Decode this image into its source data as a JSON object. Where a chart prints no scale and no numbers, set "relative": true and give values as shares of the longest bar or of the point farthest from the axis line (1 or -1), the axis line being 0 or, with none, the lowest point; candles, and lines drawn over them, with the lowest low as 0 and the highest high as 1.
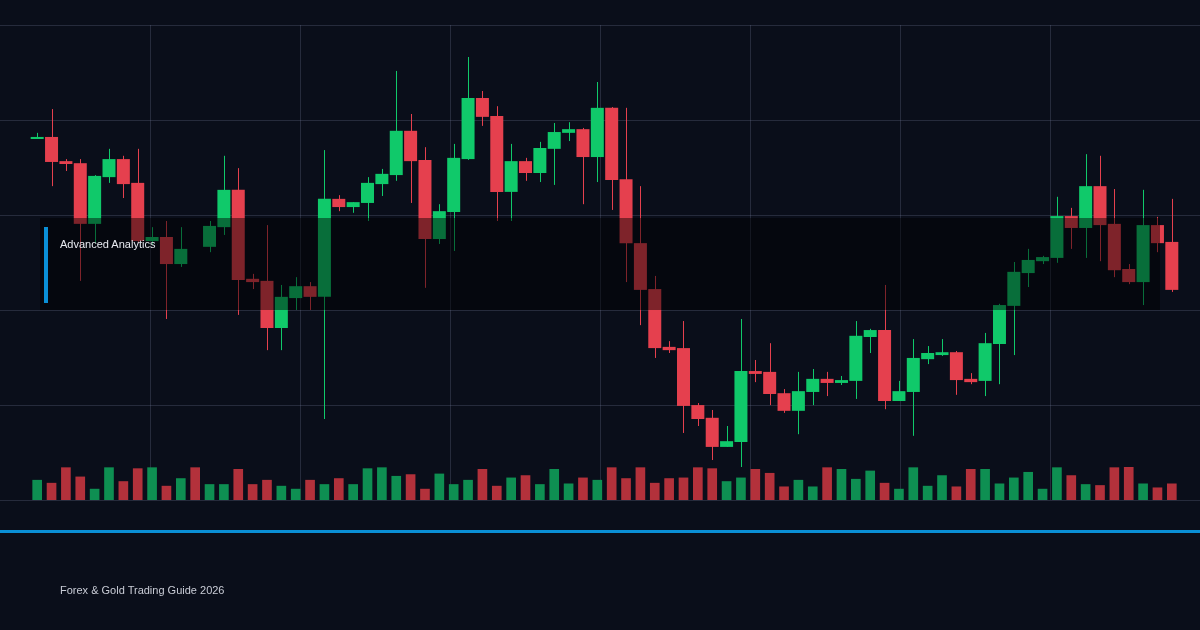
{
  "chart_data": [
    {
      "type": "candlestick",
      "relative": true,
      "grid": true,
      "annotations": [
        "Advanced Analytics",
        "Forex & Gold Trading Guide 2026"
      ],
      "categories": [
        null,
        null,
        null,
        null,
        null,
        null,
        null,
        null,
        null,
        null,
        null,
        null,
        null,
        null,
        null,
        null,
        null,
        null,
        null,
        null,
        null,
        null,
        null,
        null,
        null,
        null,
        null,
        null,
        null,
        null,
        null,
        null,
        null,
        null,
        null,
        null,
        null,
        null,
        null,
        null,
        null,
        null,
        null,
        null,
        null,
        null,
        null,
        null,
        null,
        null,
        null,
        null,
        null,
        null,
        null,
        null,
        null,
        null,
        null,
        null,
        null,
        null,
        null,
        null,
        null,
        null,
        null,
        null,
        null,
        null,
        null,
        null,
        null,
        null,
        null,
        null,
        null,
        null,
        null,
        null
      ],
      "ohlc": [
        [
          0.8,
          0.815,
          0.8,
          0.805
        ],
        [
          0.805,
          0.873,
          0.685,
          0.744
        ],
        [
          0.746,
          0.751,
          0.722,
          0.739
        ],
        [
          0.741,
          0.751,
          0.454,
          0.593
        ],
        [
          0.593,
          0.712,
          0.546,
          0.71
        ],
        [
          0.707,
          0.776,
          0.693,
          0.751
        ],
        [
          0.751,
          0.759,
          0.656,
          0.69
        ],
        [
          0.693,
          0.776,
          0.546,
          0.551
        ],
        [
          0.551,
          0.585,
          0.541,
          0.561
        ],
        [
          0.561,
          0.6,
          0.361,
          0.495
        ],
        [
          0.495,
          0.585,
          0.488,
          0.532
        ],
        null,
        [
          0.537,
          0.6,
          0.524,
          0.588
        ],
        [
          0.585,
          0.759,
          0.566,
          0.676
        ],
        [
          0.676,
          0.729,
          0.371,
          0.456
        ],
        [
          0.459,
          0.471,
          0.434,
          0.451
        ],
        [
          0.454,
          0.59,
          0.285,
          0.339
        ],
        [
          0.339,
          0.444,
          0.285,
          0.415
        ],
        [
          0.412,
          0.463,
          0.383,
          0.441
        ],
        [
          0.441,
          0.451,
          0.383,
          0.415
        ],
        [
          0.415,
          0.773,
          0.117,
          0.654
        ],
        [
          0.654,
          0.663,
          0.624,
          0.634
        ],
        [
          0.634,
          0.646,
          0.62,
          0.646
        ],
        [
          0.644,
          0.707,
          0.6,
          0.693
        ],
        [
          0.69,
          0.727,
          0.661,
          0.715
        ],
        [
          0.712,
          0.966,
          0.698,
          0.82
        ],
        [
          0.82,
          0.861,
          0.644,
          0.746
        ],
        [
          0.749,
          0.78,
          0.437,
          0.556
        ],
        [
          0.556,
          0.641,
          0.544,
          0.624
        ],
        [
          0.622,
          0.788,
          0.527,
          0.754
        ],
        [
          0.751,
          1.0,
          0.749,
          0.9
        ],
        [
          0.9,
          0.917,
          0.832,
          0.854
        ],
        [
          0.856,
          0.88,
          0.6,
          0.671
        ],
        [
          0.671,
          0.788,
          0.6,
          0.746
        ],
        [
          0.746,
          0.754,
          0.698,
          0.717
        ],
        [
          0.717,
          0.793,
          0.695,
          0.778
        ],
        [
          0.776,
          0.839,
          0.688,
          0.817
        ],
        [
          0.815,
          0.841,
          0.795,
          0.824
        ],
        [
          0.824,
          0.827,
          0.641,
          0.756
        ],
        [
          0.756,
          0.939,
          0.695,
          0.876
        ],
        [
          0.876,
          0.878,
          0.627,
          0.7
        ],
        [
          0.702,
          0.876,
          0.451,
          0.546
        ],
        [
          0.546,
          0.685,
          0.346,
          0.432
        ],
        [
          0.434,
          0.466,
          0.266,
          0.29
        ],
        [
          0.293,
          0.307,
          0.278,
          0.285
        ],
        [
          0.29,
          0.356,
          0.083,
          0.149
        ],
        [
          0.151,
          0.156,
          0.1,
          0.117
        ],
        [
          0.12,
          0.139,
          0.017,
          0.049
        ],
        [
          0.049,
          0.1,
          0.049,
          0.063
        ],
        [
          0.061,
          0.361,
          0.0,
          0.234
        ],
        [
          0.234,
          0.261,
          0.207,
          0.227
        ],
        [
          0.232,
          0.302,
          0.151,
          0.178
        ],
        [
          0.18,
          0.19,
          0.132,
          0.137
        ],
        [
          0.137,
          0.232,
          0.08,
          0.185
        ],
        [
          0.183,
          0.239,
          0.151,
          0.215
        ],
        [
          0.215,
          0.232,
          0.173,
          0.205
        ],
        [
          0.205,
          0.222,
          0.2,
          0.212
        ],
        [
          0.21,
          0.356,
          0.166,
          0.32
        ],
        [
          0.317,
          0.337,
          0.278,
          0.334
        ],
        [
          0.334,
          0.444,
          0.141,
          0.161
        ],
        [
          0.161,
          0.21,
          0.161,
          0.185
        ],
        [
          0.183,
          0.312,
          0.076,
          0.266
        ],
        [
          0.263,
          0.295,
          0.251,
          0.278
        ],
        [
          0.273,
          0.312,
          0.271,
          0.28
        ],
        [
          0.28,
          0.283,
          0.176,
          0.212
        ],
        [
          0.215,
          0.229,
          0.202,
          0.207
        ],
        [
          0.21,
          0.327,
          0.173,
          0.302
        ],
        [
          0.3,
          0.398,
          0.202,
          0.395
        ],
        [
          0.393,
          0.5,
          0.273,
          0.476
        ],
        [
          0.473,
          0.532,
          0.439,
          0.505
        ],
        [
          0.502,
          0.515,
          0.495,
          0.512
        ],
        [
          0.51,
          0.659,
          0.498,
          0.612
        ],
        [
          0.612,
          0.632,
          0.532,
          0.583
        ],
        [
          0.583,
          0.763,
          0.51,
          0.685
        ],
        [
          0.685,
          0.759,
          0.502,
          0.59
        ],
        [
          0.593,
          0.678,
          0.463,
          0.48
        ],
        [
          0.483,
          0.495,
          0.446,
          0.451
        ],
        [
          0.451,
          0.676,
          0.395,
          0.59
        ],
        [
          0.59,
          0.61,
          0.524,
          0.546
        ],
        [
          0.549,
          0.654,
          0.427,
          0.432
        ]
      ],
      "colors": [
        "#10c96a",
        "#e5404e",
        "#e5404e",
        "#e5404e",
        "#10c96a",
        "#10c96a",
        "#e5404e",
        "#e5404e",
        "#10c96a",
        "#e5404e",
        "#10c96a",
        null,
        "#10c96a",
        "#10c96a",
        "#e5404e",
        "#e5404e",
        "#e5404e",
        "#10c96a",
        "#10c96a",
        "#e5404e",
        "#10c96a",
        "#e5404e",
        "#10c96a",
        "#10c96a",
        "#10c96a",
        "#10c96a",
        "#e5404e",
        "#e5404e",
        "#10c96a",
        "#10c96a",
        "#10c96a",
        "#e5404e",
        "#e5404e",
        "#10c96a",
        "#e5404e",
        "#10c96a",
        "#10c96a",
        "#10c96a",
        "#e5404e",
        "#10c96a",
        "#e5404e",
        "#e5404e",
        "#e5404e",
        "#e5404e",
        "#e5404e",
        "#e5404e",
        "#e5404e",
        "#e5404e",
        "#10c96a",
        "#10c96a",
        "#e5404e",
        "#e5404e",
        "#e5404e",
        "#10c96a",
        "#10c96a",
        "#e5404e",
        "#10c96a",
        "#10c96a",
        "#10c96a",
        "#e5404e",
        "#10c96a",
        "#10c96a",
        "#10c96a",
        "#10c96a",
        "#e5404e",
        "#e5404e",
        "#10c96a",
        "#10c96a",
        "#10c96a",
        "#10c96a",
        "#10c96a",
        "#10c96a",
        "#e5404e",
        "#10c96a",
        "#e5404e",
        "#e5404e",
        "#e5404e",
        "#10c96a",
        "#e5404e",
        "#e5404e"
      ]
    },
    {
      "type": "bar",
      "relative": true,
      "categories": [
        null,
        null,
        null,
        null,
        null,
        null,
        null,
        null,
        null,
        null,
        null,
        null,
        null,
        null,
        null,
        null,
        null,
        null,
        null,
        null,
        null,
        null,
        null,
        null,
        null,
        null,
        null,
        null,
        null,
        null,
        null,
        null,
        null,
        null,
        null,
        null,
        null,
        null,
        null,
        null,
        null,
        null,
        null,
        null,
        null,
        null,
        null,
        null,
        null,
        null,
        null,
        null,
        null,
        null,
        null,
        null,
        null,
        null,
        null,
        null,
        null,
        null,
        null,
        null,
        null,
        null,
        null,
        null,
        null,
        null,
        null,
        null,
        null,
        null,
        null,
        null,
        null,
        null,
        null,
        null
      ],
      "values": [
        0.6,
        0.51,
        0.98,
        0.7,
        0.33,
        0.98,
        0.56,
        0.95,
        0.98,
        0.42,
        0.65,
        0.98,
        0.47,
        0.47,
        0.93,
        0.47,
        0.6,
        0.42,
        0.33,
        0.6,
        0.47,
        0.65,
        0.47,
        0.95,
        0.98,
        0.72,
        0.77,
        0.33,
        0.79,
        0.47,
        0.6,
        0.93,
        0.42,
        0.67,
        0.74,
        0.47,
        0.93,
        0.49,
        0.67,
        0.6,
        0.98,
        0.65,
        0.98,
        0.51,
        0.65,
        0.67,
        0.98,
        0.95,
        0.56,
        0.67,
        0.93,
        0.81,
        0.4,
        0.6,
        0.4,
        0.98,
        0.93,
        0.63,
        0.88,
        0.51,
        0.33,
        0.98,
        0.42,
        0.74,
        0.4,
        0.93,
        0.93,
        0.49,
        0.67,
        0.84,
        0.33,
        0.98,
        0.74,
        0.47,
        0.44,
        0.98,
        1,
        0.49,
        0.37,
        0.49
      ],
      "colors": [
        "#0e8f52",
        "#b3313b",
        "#b3313b",
        "#b3313b",
        "#0e8f52",
        "#0e8f52",
        "#b3313b",
        "#b3313b",
        "#0e8f52",
        "#b3313b",
        "#0e8f52",
        "#b3313b",
        "#0e8f52",
        "#0e8f52",
        "#b3313b",
        "#b3313b",
        "#b3313b",
        "#0e8f52",
        "#0e8f52",
        "#b3313b",
        "#0e8f52",
        "#b3313b",
        "#0e8f52",
        "#0e8f52",
        "#0e8f52",
        "#0e8f52",
        "#b3313b",
        "#b3313b",
        "#0e8f52",
        "#0e8f52",
        "#0e8f52",
        "#b3313b",
        "#b3313b",
        "#0e8f52",
        "#b3313b",
        "#0e8f52",
        "#0e8f52",
        "#0e8f52",
        "#b3313b",
        "#0e8f52",
        "#b3313b",
        "#b3313b",
        "#b3313b",
        "#b3313b",
        "#b3313b",
        "#b3313b",
        "#b3313b",
        "#b3313b",
        "#0e8f52",
        "#0e8f52",
        "#b3313b",
        "#b3313b",
        "#b3313b",
        "#0e8f52",
        "#0e8f52",
        "#b3313b",
        "#0e8f52",
        "#0e8f52",
        "#0e8f52",
        "#b3313b",
        "#0e8f52",
        "#0e8f52",
        "#0e8f52",
        "#0e8f52",
        "#b3313b",
        "#b3313b",
        "#0e8f52",
        "#0e8f52",
        "#0e8f52",
        "#0e8f52",
        "#0e8f52",
        "#0e8f52",
        "#b3313b",
        "#0e8f52",
        "#b3313b",
        "#b3313b",
        "#b3313b",
        "#0e8f52",
        "#b3313b",
        "#b3313b"
      ]
    }
  ]
}
